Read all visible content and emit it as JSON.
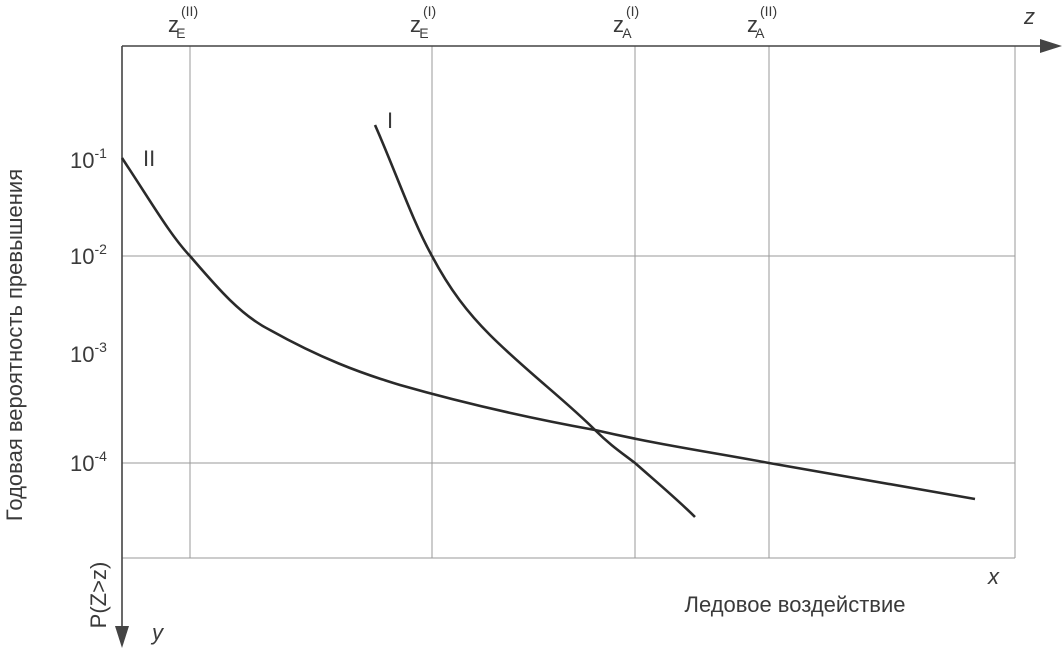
{
  "y_axis": {
    "title": "Годовая вероятность превышения",
    "symbol": "P(Z>z)",
    "letter": "y",
    "ticks": [
      {
        "base": "10",
        "exp": "-1"
      },
      {
        "base": "10",
        "exp": "-2"
      },
      {
        "base": "10",
        "exp": "-3"
      },
      {
        "base": "10",
        "exp": "-4"
      }
    ]
  },
  "x_axis": {
    "title": "Ледовое воздействие",
    "letter": "x"
  },
  "z_axis": {
    "letter": "z",
    "ticks": [
      {
        "main": "z",
        "sup": "(II)",
        "sub": "E"
      },
      {
        "main": "z",
        "sup": "(I)",
        "sub": "E"
      },
      {
        "main": "z",
        "sup": "(I)",
        "sub": "A"
      },
      {
        "main": "z",
        "sup": "(II)",
        "sub": "A"
      }
    ]
  },
  "curves": [
    {
      "label": "I"
    },
    {
      "label": "II"
    }
  ]
}
